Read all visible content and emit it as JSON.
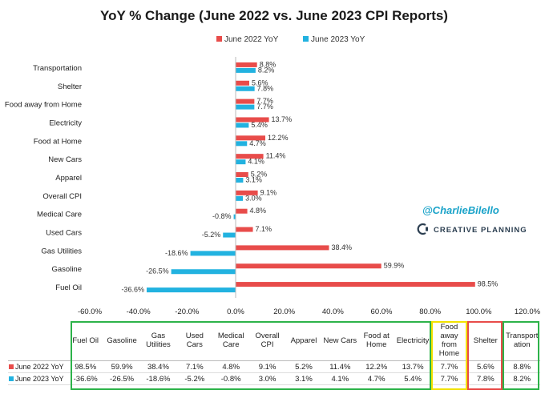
{
  "chart_data": {
    "type": "bar",
    "title": "YoY % Change (June 2022 vs. June 2023 CPI Reports)",
    "categories": [
      "Transportation",
      "Shelter",
      "Food away from Home",
      "Electricity",
      "Food at Home",
      "New Cars",
      "Apparel",
      "Overall CPI",
      "Medical Care",
      "Used Cars",
      "Gas Utilities",
      "Gasoline",
      "Fuel Oil"
    ],
    "series": [
      {
        "name": "June 2022 YoY",
        "color": "#e84c4a",
        "values": [
          8.8,
          5.6,
          7.7,
          13.7,
          12.2,
          11.4,
          5.2,
          9.1,
          4.8,
          7.1,
          38.4,
          59.9,
          98.5
        ]
      },
      {
        "name": "June 2023 YoY",
        "color": "#22b2e0",
        "values": [
          8.2,
          7.8,
          7.7,
          5.4,
          4.7,
          4.1,
          3.1,
          3.0,
          -0.8,
          -5.2,
          -18.6,
          -26.5,
          -36.6
        ]
      }
    ],
    "value_labels": [
      [
        "8.8%",
        "5.6%",
        "7.7%",
        "13.7%",
        "12.2%",
        "11.4%",
        "5.2%",
        "9.1%",
        "4.8%",
        "7.1%",
        "38.4%",
        "59.9%",
        "98.5%"
      ],
      [
        "8.2%",
        "7.8%",
        "7.7%",
        "5.4%",
        "4.7%",
        "4.1%",
        "3.1%",
        "3.0%",
        "-0.8%",
        "-5.2%",
        "-18.6%",
        "-26.5%",
        "-36.6%"
      ]
    ],
    "xlim": [
      -60,
      120
    ],
    "xticks": [
      -60,
      -40,
      -20,
      0,
      20,
      40,
      60,
      80,
      100,
      120
    ],
    "xtick_labels": [
      "-60.0%",
      "-40.0%",
      "-20.0%",
      "0.0%",
      "20.0%",
      "40.0%",
      "60.0%",
      "80.0%",
      "100.0%",
      "120.0%"
    ],
    "grid": false,
    "legend": "top"
  },
  "table": {
    "headers": [
      "Fuel Oil",
      "Gasoline",
      "Gas Utilities",
      "Used Cars",
      "Medical Care",
      "Overall CPI",
      "Apparel",
      "New Cars",
      "Food at Home",
      "Electricity",
      "Food away from Home",
      "Shelter",
      "Transport ation"
    ],
    "rows": [
      {
        "label": "June 2022 YoY",
        "color": "#e84c4a",
        "values": [
          "98.5%",
          "59.9%",
          "38.4%",
          "7.1%",
          "4.8%",
          "9.1%",
          "5.2%",
          "11.4%",
          "12.2%",
          "13.7%",
          "7.7%",
          "5.6%",
          "8.8%"
        ]
      },
      {
        "label": "June 2023 YoY",
        "color": "#22b2e0",
        "values": [
          "-36.6%",
          "-26.5%",
          "-18.6%",
          "-5.2%",
          "-0.8%",
          "3.0%",
          "3.1%",
          "4.1%",
          "4.7%",
          "5.4%",
          "7.7%",
          "7.8%",
          "8.2%"
        ]
      }
    ],
    "highlight_colors": {
      "main": "#2db34a",
      "food_away": "#f2e200",
      "shelter": "#e84c4a",
      "transportation": "#2db34a"
    }
  },
  "watermark": {
    "handle": "@CharlieBilello",
    "brand": "CREATIVE PLANNING"
  }
}
